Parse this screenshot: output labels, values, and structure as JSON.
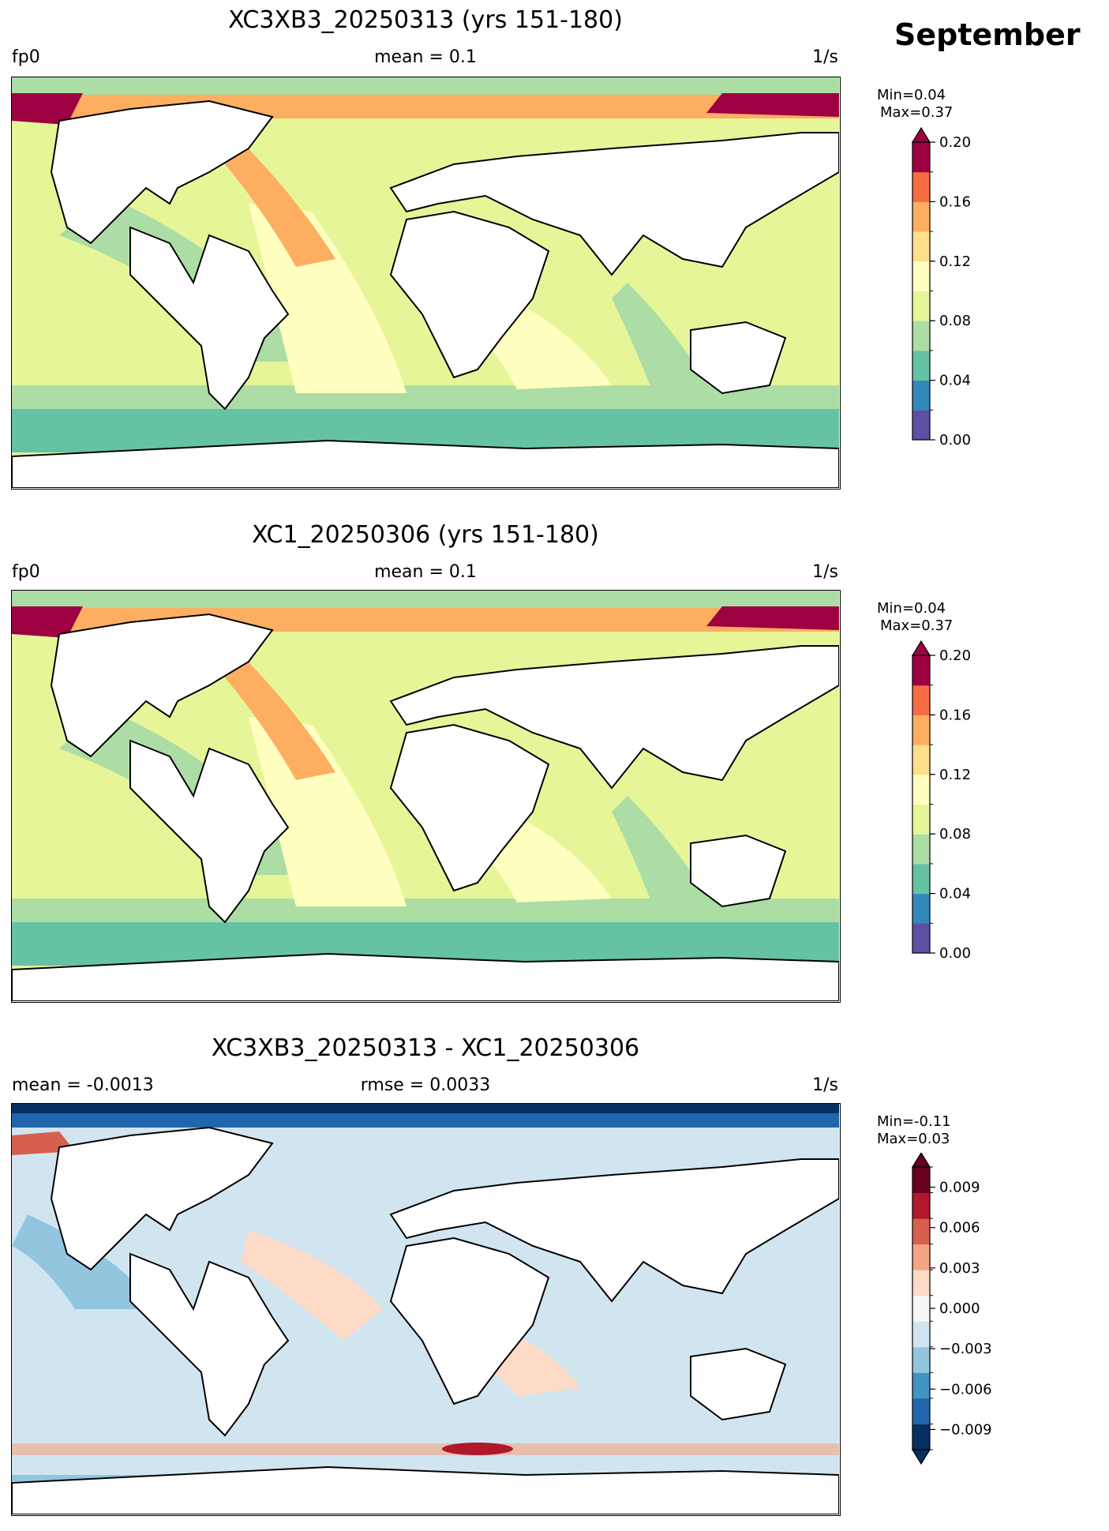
{
  "header": {
    "month": "September"
  },
  "panels": [
    {
      "title": "XC3XB3_20250313 (yrs 151-180)",
      "left": "fp0",
      "center": "mean = 0.1",
      "right": "1/s",
      "colorbar": {
        "min_text": "Min=0.04",
        "max_text": "Max=0.37",
        "ticks": [
          "0.20",
          "0.16",
          "0.12",
          "0.08",
          "0.04",
          "0.00"
        ],
        "colors": [
          "#5e4fa2",
          "#3288bd",
          "#66c2a5",
          "#abdda4",
          "#e6f598",
          "#ffffbf",
          "#fee08b",
          "#fdae61",
          "#f46d43",
          "#9e0142"
        ],
        "extend": "max",
        "range": [
          0.0,
          0.2
        ]
      }
    },
    {
      "title": "XC1_20250306 (yrs 151-180)",
      "left": "fp0",
      "center": "mean = 0.1",
      "right": "1/s",
      "colorbar": {
        "min_text": "Min=0.04",
        "max_text": "Max=0.37",
        "ticks": [
          "0.20",
          "0.16",
          "0.12",
          "0.08",
          "0.04",
          "0.00"
        ],
        "colors": [
          "#5e4fa2",
          "#3288bd",
          "#66c2a5",
          "#abdda4",
          "#e6f598",
          "#ffffbf",
          "#fee08b",
          "#fdae61",
          "#f46d43",
          "#9e0142"
        ],
        "extend": "max",
        "range": [
          0.0,
          0.2
        ]
      }
    },
    {
      "title": "XC3XB3_20250313 - XC1_20250306",
      "left": "mean = -0.0013",
      "center": "rmse = 0.0033",
      "right": "1/s",
      "colorbar": {
        "min_text": "Min=-0.11",
        "max_text": "Max=0.03",
        "ticks": [
          "0.009",
          "0.006",
          "0.003",
          "0.000",
          "−0.003",
          "−0.006",
          "−0.009"
        ],
        "colors": [
          "#053061",
          "#2166ac",
          "#4393c3",
          "#92c5de",
          "#d1e5f0",
          "#f7f7f7",
          "#fddbc7",
          "#f4a582",
          "#d6604d",
          "#b2182b",
          "#67001f"
        ],
        "extend": "both",
        "range": [
          -0.0105,
          0.0105
        ]
      }
    }
  ]
}
